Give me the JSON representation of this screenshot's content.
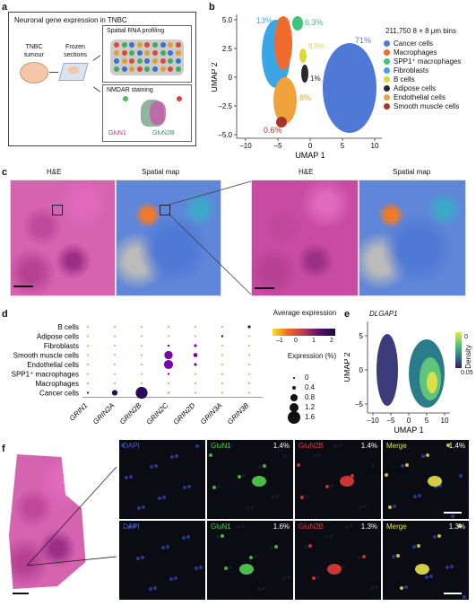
{
  "panel_a": {
    "label": "a",
    "title": "Neuronal gene expression in TNBC",
    "tumour": "TNBC tumour",
    "frozen": "Frozen sections",
    "spatial_rna": "Spatial RNA profiling",
    "nmdar": "NMDAR staining",
    "glun1": "GluN1",
    "glun2b": "GluN2B"
  },
  "panel_b": {
    "label": "b",
    "bins_label": "211,750 8 × 8 μm bins",
    "xlabel": "UMAP 1",
    "ylabel": "UMAP 2",
    "xticks": [
      "–10",
      "–5",
      "0",
      "5",
      "10"
    ],
    "yticks": [
      "5.0",
      "2.5",
      "0",
      "–2.5",
      "–5.0"
    ],
    "annotations": [
      {
        "text": "13%",
        "color": "#3aa6e6"
      },
      {
        "text": "6%",
        "color": "#ef6a2c"
      },
      {
        "text": "6.3%",
        "color": "#3fc47b"
      },
      {
        "text": "0.5%",
        "color": "#d9d93a"
      },
      {
        "text": "1%",
        "color": "#222222"
      },
      {
        "text": "8%",
        "color": "#f0a23a"
      },
      {
        "text": "0.6%",
        "color": "#a5352a"
      },
      {
        "text": "71%",
        "color": "#4f79d6"
      }
    ],
    "legend": [
      {
        "name": "Cancer cells",
        "color": "#4f79d6"
      },
      {
        "name": "Macrophages",
        "color": "#ef6a2c"
      },
      {
        "name": "SPP1⁺ macrophages",
        "color": "#3fc47b"
      },
      {
        "name": "Fibroblasts",
        "color": "#3aa6e6"
      },
      {
        "name": "B cells",
        "color": "#d9d93a"
      },
      {
        "name": "Adipose cells",
        "color": "#2a2a2a"
      },
      {
        "name": "Endothelial cells",
        "color": "#f0a23a"
      },
      {
        "name": "Smooth muscle cells",
        "color": "#a5352a"
      }
    ]
  },
  "panel_c": {
    "label": "c",
    "he": "H&E",
    "spatial": "Spatial map",
    "he2": "H&E",
    "spatial2": "Spatial map"
  },
  "panel_d": {
    "label": "d",
    "colorbar_title": "Average expression",
    "colorbar_ticks": [
      "–1",
      "0",
      "1",
      "2"
    ],
    "size_title": "Expression (%)",
    "size_legend": [
      "0",
      "0.4",
      "0.8",
      "1.2",
      "1.6"
    ]
  },
  "panel_e": {
    "label": "e",
    "gene": "DLGAP1",
    "xlabel": "UMAP 1",
    "ylabel": "UMAP 2",
    "xticks": [
      "–10",
      "–5",
      "0",
      "5",
      "10"
    ],
    "yticks": [
      "5",
      "0",
      "–5"
    ],
    "density_label": "Density",
    "density_ticks": [
      "0",
      "0.05"
    ]
  },
  "panel_f": {
    "label": "f",
    "rows": [
      {
        "channels": [
          {
            "name": "DAPI",
            "color": "#4a5fd0",
            "pct": ""
          },
          {
            "name": "GluN1",
            "color": "#4fd04f",
            "pct": "1.4%"
          },
          {
            "name": "GluN2B",
            "color": "#e03a3a",
            "pct": "1.4%"
          },
          {
            "name": "Merge",
            "color": "#e8e24a",
            "pct": "1.4%"
          }
        ]
      },
      {
        "channels": [
          {
            "name": "DAPI",
            "color": "#4a5fd0",
            "pct": ""
          },
          {
            "name": "GluN1",
            "color": "#4fd04f",
            "pct": "1.6%"
          },
          {
            "name": "GluN2B",
            "color": "#e03a3a",
            "pct": "1.3%"
          },
          {
            "name": "Merge",
            "color": "#e8e24a",
            "pct": "1.3%"
          }
        ]
      }
    ]
  },
  "chart_data": [
    {
      "type": "scatter",
      "title": "",
      "xlabel": "UMAP 1",
      "ylabel": "UMAP 2",
      "xlim": [
        -12,
        12
      ],
      "ylim": [
        -5,
        6
      ],
      "series": [
        {
          "name": "Cancer cells",
          "share_pct": 71
        },
        {
          "name": "Macrophages",
          "share_pct": 6
        },
        {
          "name": "SPP1⁺ macrophages",
          "share_pct": 6.3
        },
        {
          "name": "Fibroblasts",
          "share_pct": 13
        },
        {
          "name": "B cells",
          "share_pct": 0.5
        },
        {
          "name": "Adipose cells",
          "share_pct": 1
        },
        {
          "name": "Endothelial cells",
          "share_pct": 8
        },
        {
          "name": "Smooth muscle cells",
          "share_pct": 0.6
        }
      ]
    },
    {
      "type": "scatter",
      "subtype": "dotplot",
      "rows": [
        "B cells",
        "Adipose cells",
        "Fibroblasts",
        "Smooth muscle cells",
        "Endothelial cells",
        "SPP1⁺ macrophages",
        "Macrophages",
        "Cancer cells"
      ],
      "columns": [
        "GRIN1",
        "GRIN2A",
        "GRIN2B",
        "GRIN2C",
        "GRIN2D",
        "GRIN3A",
        "GRIN3B"
      ],
      "expression_pct": [
        [
          0.05,
          0.05,
          0.05,
          0.05,
          0.05,
          0.05,
          0.2
        ],
        [
          0.05,
          0.05,
          0.05,
          0.05,
          0.05,
          0.1,
          0.05
        ],
        [
          0.05,
          0.05,
          0.05,
          0.1,
          0.2,
          0.05,
          0.05
        ],
        [
          0.05,
          0.05,
          0.05,
          1.0,
          0.4,
          0.05,
          0.05
        ],
        [
          0.05,
          0.05,
          0.05,
          1.1,
          0.2,
          0.05,
          0.05
        ],
        [
          0.05,
          0.05,
          0.05,
          0.1,
          0.05,
          0.05,
          0.05
        ],
        [
          0.05,
          0.05,
          0.05,
          0.05,
          0.05,
          0.05,
          0.05
        ],
        [
          0.1,
          0.6,
          1.5,
          0.1,
          0.05,
          0.05,
          0.05
        ]
      ],
      "avg_expression": [
        [
          0,
          -0.5,
          -0.5,
          -0.5,
          -0.5,
          -0.5,
          2
        ],
        [
          0,
          -0.5,
          -0.5,
          -0.5,
          -0.5,
          2,
          -0.5
        ],
        [
          -0.5,
          -0.5,
          -0.5,
          1,
          1.5,
          -0.5,
          -0.5
        ],
        [
          -0.5,
          -0.5,
          -0.5,
          1.8,
          1.8,
          -0.5,
          -0.5
        ],
        [
          -0.5,
          -0.5,
          -0.5,
          1.8,
          1.5,
          -0.5,
          -0.5
        ],
        [
          -0.5,
          -0.5,
          -0.5,
          1,
          -0.5,
          -0.5,
          -0.5
        ],
        [
          -0.5,
          -0.5,
          -0.5,
          -0.5,
          -0.5,
          -0.5,
          -0.5
        ],
        [
          1,
          2,
          2.2,
          -0.5,
          -0.5,
          -0.5,
          -0.5
        ]
      ],
      "colorbar_range": [
        -1,
        2.2
      ],
      "size_range": [
        0,
        1.6
      ]
    },
    {
      "type": "scatter",
      "title": "DLGAP1",
      "xlabel": "UMAP 1",
      "ylabel": "UMAP 2",
      "xlim": [
        -12,
        12
      ],
      "ylim": [
        -6,
        6
      ],
      "colorbar": {
        "label": "Density",
        "range": [
          0,
          0.05
        ]
      }
    }
  ]
}
